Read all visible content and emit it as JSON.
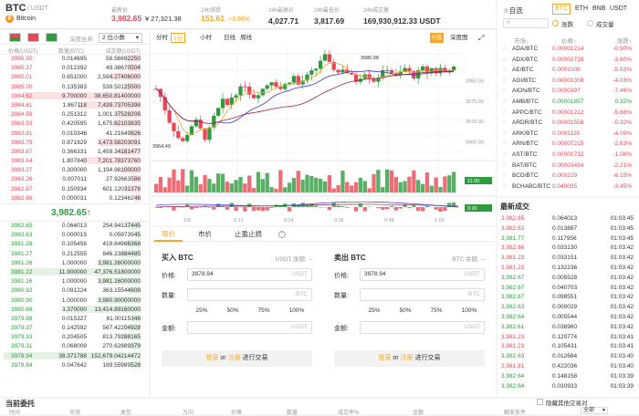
{
  "header": {
    "symbol": "BTC",
    "quote": "/ USDT",
    "coin_name": "Bitcoin",
    "latest_label": "最新价",
    "latest_price": "3,982.65",
    "latest_cny": "¥ 27,321.38",
    "change_label": "24h涨跌",
    "change_value": "151.61",
    "change_pct": "+3.96%",
    "high_label": "24h最高价",
    "high_value": "4,027.71",
    "low_label": "24h最低价",
    "low_value": "3,817.69",
    "volume_label": "24h成交量",
    "volume_value": "169,930,912.33 USDT"
  },
  "orderbook": {
    "merge_label": "深度合并",
    "decimals": "2 位小数",
    "col_price": "价格(USDT)",
    "col_amount": "数量(BTC)",
    "col_total": "成交额(USDT)",
    "asks": [
      {
        "p": "3985.50",
        "a": "0.014695",
        "t": "58.56692250",
        "d": 0.1
      },
      {
        "p": "3985.37",
        "a": "0.012392",
        "t": "49.38670504",
        "d": 0.09
      },
      {
        "p": "3985.01",
        "a": "0.651000",
        "t": "2,594.27406000",
        "d": 0.22
      },
      {
        "p": "3985.00",
        "a": "0.135383",
        "t": "539.50125500",
        "d": 0.12
      },
      {
        "p": "3984.62",
        "a": "9.700000",
        "t": "38,650.81400000",
        "d": 0.86
      },
      {
        "p": "3984.61",
        "a": "1.867118",
        "t": "7,439.73705398",
        "d": 0.45
      },
      {
        "p": "3984.59",
        "a": "0.251312",
        "t": "1,001.37528208",
        "d": 0.18
      },
      {
        "p": "3983.93",
        "a": "0.420595",
        "t": "1,675.62103835",
        "d": 0.2
      },
      {
        "p": "3983.81",
        "a": "0.010346",
        "t": "41.21649826",
        "d": 0.08
      },
      {
        "p": "3983.79",
        "a": "0.871929",
        "t": "3,473.58203091",
        "d": 0.3
      },
      {
        "p": "3983.67",
        "a": "0.366331",
        "t": "1,459.34181477",
        "d": 0.16
      },
      {
        "p": "3983.64",
        "a": "1.807840",
        "t": "7,201.78373760",
        "d": 0.42
      },
      {
        "p": "3983.27",
        "a": "0.300000",
        "t": "1,194.98100000",
        "d": 0.14
      },
      {
        "p": "3983.26",
        "a": "0.007011",
        "t": "27.92663586",
        "d": 0.06
      },
      {
        "p": "3982.67",
        "a": "0.150934",
        "t": "601.12031378",
        "d": 0.11
      },
      {
        "p": "3982.66",
        "a": "0.000031",
        "t": "0.12346246",
        "d": 0.04
      }
    ],
    "last_price": "3,982.65↑",
    "last_cny": "¥ 27,321.38",
    "bids": [
      {
        "p": "3982.65",
        "a": "0.064013",
        "t": "254.94137445",
        "d": 0.1
      },
      {
        "p": "3982.63",
        "a": "0.000015",
        "t": "0.05973945",
        "d": 0.04
      },
      {
        "p": "3981.28",
        "a": "0.105456",
        "t": "419.84986368",
        "d": 0.1
      },
      {
        "p": "3981.27",
        "a": "0.212555",
        "t": "846.23884485",
        "d": 0.14
      },
      {
        "p": "3981.26",
        "a": "1.000000",
        "t": "3,981.26000000",
        "d": 0.3
      },
      {
        "p": "3981.22",
        "a": "11.900000",
        "t": "47,376.51800000",
        "d": 0.95
      },
      {
        "p": "3981.16",
        "a": "1.000000",
        "t": "3,981.16000000",
        "d": 0.3
      },
      {
        "p": "3980.92",
        "a": "0.091224",
        "t": "363.15544608",
        "d": 0.1
      },
      {
        "p": "3980.90",
        "a": "1.000000",
        "t": "3,980.90000000",
        "d": 0.3
      },
      {
        "p": "3980.68",
        "a": "3.370000",
        "t": "13,414.89160000",
        "d": 0.55
      },
      {
        "p": "3979.98",
        "a": "0.015327",
        "t": "61.00115346",
        "d": 0.06
      },
      {
        "p": "3979.37",
        "a": "0.142592",
        "t": "567.42204928",
        "d": 0.12
      },
      {
        "p": "3979.33",
        "a": "0.204505",
        "t": "813.79288165",
        "d": 0.14
      },
      {
        "p": "3979.31",
        "a": "0.068009",
        "t": "270.62889379",
        "d": 0.08
      },
      {
        "p": "3978.94",
        "a": "38.371788",
        "t": "152,679.04214472",
        "d": 1.0
      },
      {
        "p": "3978.84",
        "a": "0.047642",
        "t": "189.55989528",
        "d": 0.07
      }
    ]
  },
  "chart": {
    "tabs": [
      "分时",
      "1分",
      "小时",
      "日线",
      "周线"
    ],
    "kline_label": "K线",
    "depth_label": "深度图",
    "price_ticks": [
      "3980.00",
      "3975.00",
      "3970.00",
      "3965.00"
    ],
    "high_mark": "3985.98",
    "low_mark": "3964.49",
    "time_ticks": [
      "1/8",
      "0:12",
      "0:24",
      "0:36",
      "0:48",
      "1:00"
    ],
    "vol_tag": "11.00",
    "macd_tag": "0.00"
  },
  "trade": {
    "tabs": [
      "限价",
      "市价",
      "止盈止损"
    ],
    "buy_title": "买入 BTC",
    "buy_balance": "USDT 余额: --",
    "sell_title": "卖出 BTC",
    "sell_balance": "BTC 余额: --",
    "price_label": "价格:",
    "amount_label": "数量:",
    "total_label": "金额:",
    "price_value": "3978.94",
    "unit_usdt": "USDT",
    "unit_btc": "BTC",
    "pcts": [
      "25%",
      "50%",
      "75%",
      "100%"
    ],
    "login": "登录",
    "or": " or ",
    "register": "注册",
    "action": " 进行交易"
  },
  "market": {
    "fav_label": "☆自选",
    "tabs": [
      "BTC",
      "ETH",
      "BNB",
      "USDT"
    ],
    "search_placeholder": "",
    "opt_change": "涨跌",
    "opt_volume": "成交量",
    "col_pair": "市场↕",
    "col_price": "价格↕",
    "col_change": "涨跌↕",
    "rows": [
      {
        "pair": "ADA/BTC",
        "price": "0.00001214",
        "chg": "-0.90%",
        "up": false
      },
      {
        "pair": "ADX/BTC",
        "price": "0.00002728",
        "chg": "-3.60%",
        "up": false
      },
      {
        "pair": "AE/BTC",
        "price": "0.0001008",
        "chg": "-5.53%",
        "up": false
      },
      {
        "pair": "AGI/BTC",
        "price": "0.00001358",
        "chg": "-4.03%",
        "up": false
      },
      {
        "pair": "AION/BTC",
        "price": "0.0000397",
        "chg": "-7.46%",
        "up": false
      },
      {
        "pair": "AMB/BTC",
        "price": "0.00001857",
        "chg": "0.32%",
        "up": true
      },
      {
        "pair": "APPC/BTC",
        "price": "0.00001212",
        "chg": "-5.68%",
        "up": false
      },
      {
        "pair": "ARDR/BTC",
        "price": "0.00001558",
        "chg": "-0.32%",
        "up": false
      },
      {
        "pair": "ARK/BTC",
        "price": "0.0001125",
        "chg": "-4.09%",
        "up": false
      },
      {
        "pair": "ARN/BTC",
        "price": "0.00007215",
        "chg": "-2.63%",
        "up": false
      },
      {
        "pair": "AST/BTC",
        "price": "0.00000732",
        "chg": "-1.08%",
        "up": false
      },
      {
        "pair": "BAT/BTC",
        "price": "0.00003454",
        "chg": "-2.21%",
        "up": false
      },
      {
        "pair": "BCD/BTC",
        "price": "0.000229",
        "chg": "-6.15%",
        "up": false
      },
      {
        "pair": "BCHABC/BTC",
        "price": "0.040095",
        "chg": "-3.45%",
        "up": false
      }
    ]
  },
  "latest_trades": {
    "title": "最新成交",
    "rows": [
      {
        "p": "3,982.65",
        "a": "0.064013",
        "t": "01:03:45",
        "up": false
      },
      {
        "p": "3,982.63",
        "a": "0.013887",
        "t": "01:03:45",
        "up": false
      },
      {
        "p": "3,981.77",
        "a": "0.117956",
        "t": "01:03:45",
        "up": true
      },
      {
        "p": "3,982.66",
        "a": "0.033130",
        "t": "01:03:42",
        "up": false
      },
      {
        "p": "3,981.23",
        "a": "0.033151",
        "t": "01:03:42",
        "up": false
      },
      {
        "p": "3,981.23",
        "a": "0.132236",
        "t": "01:03:42",
        "up": false
      },
      {
        "p": "3,982.67",
        "a": "0.005528",
        "t": "01:03:42",
        "up": true
      },
      {
        "p": "3,982.67",
        "a": "0.040703",
        "t": "01:03:42",
        "up": true
      },
      {
        "p": "3,982.67",
        "a": "0.098551",
        "t": "01:03:42",
        "up": true
      },
      {
        "p": "3,982.63",
        "a": "0.000029",
        "t": "01:03:42",
        "up": true
      },
      {
        "p": "3,982.64",
        "a": "0.005544",
        "t": "01:03:42",
        "up": true
      },
      {
        "p": "3,982.61",
        "a": "0.038960",
        "t": "01:03:42",
        "up": true
      },
      {
        "p": "3,981.23",
        "a": "0.120774",
        "t": "01:03:41",
        "up": false
      },
      {
        "p": "3,981.23",
        "a": "0.105431",
        "t": "01:03:41",
        "up": false
      },
      {
        "p": "3,982.63",
        "a": "0.012684",
        "t": "01:03:40",
        "up": true
      },
      {
        "p": "3,981.81",
        "a": "0.422036",
        "t": "01:03:40",
        "up": false
      },
      {
        "p": "3,982.64",
        "a": "0.148158",
        "t": "01:03:39",
        "up": true
      },
      {
        "p": "3,982.64",
        "a": "0.030933",
        "t": "01:03:39",
        "up": true
      }
    ]
  },
  "bottom": {
    "title": "当前委托",
    "hide_label": "隐藏其他交易对",
    "cols": [
      "时间",
      "市场",
      "类型",
      "方向",
      "价格",
      "数量",
      "成交率%",
      "金额",
      "触发条件"
    ],
    "filter": "全部"
  }
}
